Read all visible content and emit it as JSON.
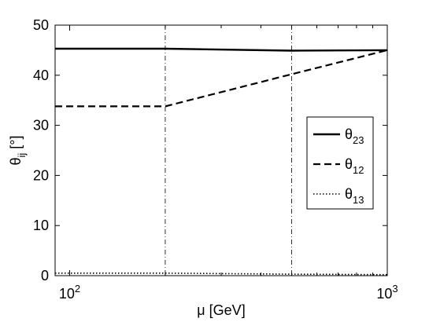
{
  "chart_data": {
    "type": "line",
    "xlabel": "μ [GeV]",
    "ylabel": {
      "main": "θ",
      "sub": "ij",
      "unit": " [°]"
    },
    "xscale": "log",
    "xlim": [
      90,
      1000
    ],
    "ylim": [
      0,
      50
    ],
    "yticks": [
      0,
      10,
      20,
      30,
      40,
      50
    ],
    "xticks": [
      {
        "base": "10",
        "exp": "2",
        "value": 100
      },
      {
        "base": "10",
        "exp": "3",
        "value": 1000
      }
    ],
    "vertical_lines": [
      200,
      500
    ],
    "legend": {
      "position": "right"
    },
    "series": [
      {
        "name": {
          "main": "θ",
          "sub": "23"
        },
        "style": "solid",
        "color": "#000000",
        "x": [
          90,
          200,
          500,
          1000
        ],
        "y": [
          45.3,
          45.3,
          44.9,
          45.0
        ]
      },
      {
        "name": {
          "main": "θ",
          "sub": "12"
        },
        "style": "dashed",
        "color": "#000000",
        "x": [
          90,
          200,
          500,
          1000
        ],
        "y": [
          33.8,
          33.8,
          40.2,
          45.0
        ]
      },
      {
        "name": {
          "main": "θ",
          "sub": "13"
        },
        "style": "dotted",
        "color": "#000000",
        "x": [
          90,
          200,
          500,
          1000
        ],
        "y": [
          0.5,
          0.5,
          0.3,
          0.2
        ]
      }
    ]
  }
}
